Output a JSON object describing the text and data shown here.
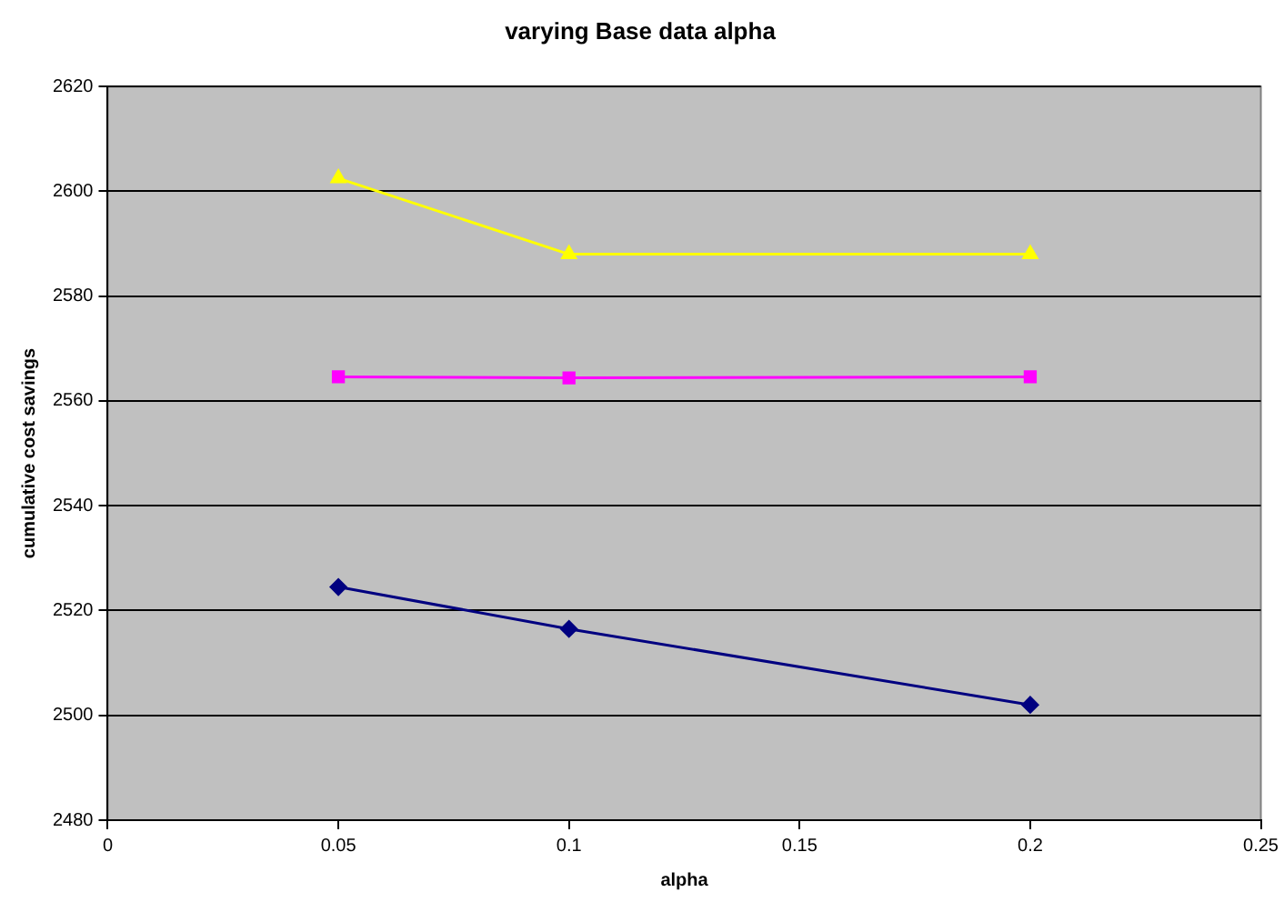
{
  "chart_data": {
    "type": "line",
    "title": "varying Base data alpha",
    "xlabel": "alpha",
    "ylabel": "cumulative cost savings",
    "x": [
      0.05,
      0.1,
      0.2
    ],
    "series": [
      {
        "color": "#000080",
        "marker": "diamond",
        "values": [
          2524.5,
          2516.5,
          2502
        ]
      },
      {
        "color": "#ff00ff",
        "marker": "square",
        "values": [
          2564.6,
          2564.4,
          2564.6
        ]
      },
      {
        "color": "#ffff00",
        "marker": "triangle",
        "values": [
          2602.5,
          2588,
          2588
        ]
      }
    ],
    "xlim": [
      0,
      0.25
    ],
    "xticks": [
      0,
      0.05,
      0.1,
      0.15,
      0.2,
      0.25
    ],
    "ylim": [
      2480,
      2620
    ],
    "yticks": [
      2480,
      2500,
      2520,
      2540,
      2560,
      2580,
      2600,
      2620
    ],
    "grid": "y",
    "legend": false,
    "line_style": "solid"
  }
}
